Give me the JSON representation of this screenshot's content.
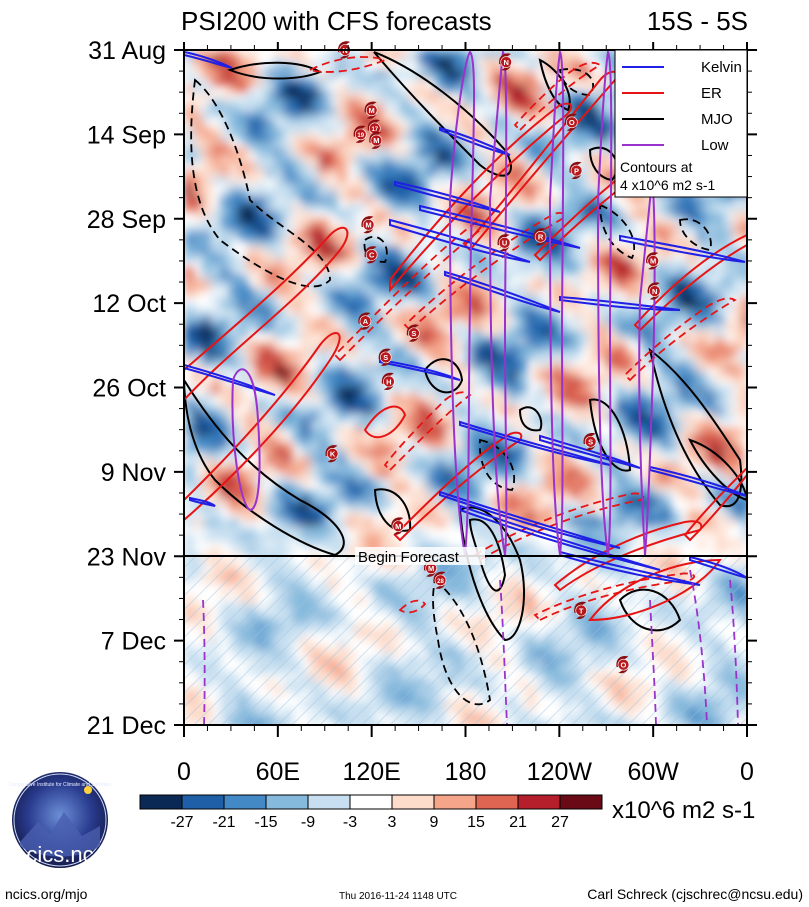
{
  "header": {
    "title": "PSI200 with CFS forecasts",
    "region": "15S - 5S"
  },
  "chart_data": {
    "type": "heatmap",
    "title": "PSI200 with CFS forecasts",
    "subtitle": "15S - 5S",
    "xlabel": "Longitude",
    "ylabel": "Date",
    "x_ticks": [
      "0",
      "60E",
      "120E",
      "180",
      "120W",
      "60W",
      "0"
    ],
    "x_range": [
      0,
      360
    ],
    "y_ticks": [
      "31 Aug",
      "14 Sep",
      "28 Sep",
      "12 Oct",
      "26 Oct",
      "9 Nov",
      "23 Nov",
      "7 Dec",
      "21 Dec"
    ],
    "forecast_label": "Begin Forecast",
    "legend": {
      "entries": [
        {
          "label": "Kelvin",
          "color": "#1f1fe6"
        },
        {
          "label": "ER",
          "color": "#e61414"
        },
        {
          "label": "MJO",
          "color": "#000000"
        },
        {
          "label": "Low",
          "color": "#9933cc"
        }
      ],
      "note_line1": "Contours at",
      "note_line2": "4 x10^6 m2 s-1"
    },
    "colorbar": {
      "labels": [
        "-27",
        "-21",
        "-15",
        "-9",
        "-3",
        "3",
        "9",
        "15",
        "21",
        "27"
      ],
      "colors": [
        "#0a2a55",
        "#1f5fa8",
        "#4389c6",
        "#86badd",
        "#c7dff0",
        "#ffffff",
        "#fddccb",
        "#f4a58a",
        "#de6552",
        "#b51e2b",
        "#6a0a16"
      ],
      "units": "x10^6 m2 s-1"
    },
    "storms": [
      {
        "label": "N",
        "lon": 103,
        "day": 0
      },
      {
        "label": "N",
        "lon": 206,
        "day": 2
      },
      {
        "label": "M",
        "lon": 286,
        "day": 5
      },
      {
        "label": "M",
        "lon": 120,
        "day": 10
      },
      {
        "label": "19",
        "lon": 113,
        "day": 14
      },
      {
        "label": "17",
        "lon": 122,
        "day": 13
      },
      {
        "label": "M",
        "lon": 123,
        "day": 15
      },
      {
        "label": "O",
        "lon": 248,
        "day": 12
      },
      {
        "label": "P",
        "lon": 251,
        "day": 20
      },
      {
        "label": "M",
        "lon": 118,
        "day": 29
      },
      {
        "label": "U",
        "lon": 205,
        "day": 32
      },
      {
        "label": "R",
        "lon": 228,
        "day": 31
      },
      {
        "label": "C",
        "lon": 120,
        "day": 34
      },
      {
        "label": "M",
        "lon": 300,
        "day": 35
      },
      {
        "label": "N",
        "lon": 301,
        "day": 40
      },
      {
        "label": "A",
        "lon": 116,
        "day": 45
      },
      {
        "label": "S",
        "lon": 147,
        "day": 47
      },
      {
        "label": "S",
        "lon": 129,
        "day": 51
      },
      {
        "label": "H",
        "lon": 131,
        "day": 55
      },
      {
        "label": "S",
        "lon": 260,
        "day": 65
      },
      {
        "label": "K",
        "lon": 95,
        "day": 67
      },
      {
        "label": "M",
        "lon": 137,
        "day": 79
      },
      {
        "label": "M",
        "lon": 158,
        "day": 86
      },
      {
        "label": "28",
        "lon": 164,
        "day": 88
      },
      {
        "label": "T",
        "lon": 254,
        "day": 93
      },
      {
        "label": "O",
        "lon": 281,
        "day": 102
      }
    ]
  },
  "footer": {
    "logo_text": "cics.nc",
    "logo_ring_text": "Cooperative Institute for Climate and Satellites",
    "website": "ncics.org/mjo",
    "timestamp": "Thu 2016-11-24 1148 UTC",
    "author": "Carl Schreck (cjschrec@ncsu.edu)"
  }
}
